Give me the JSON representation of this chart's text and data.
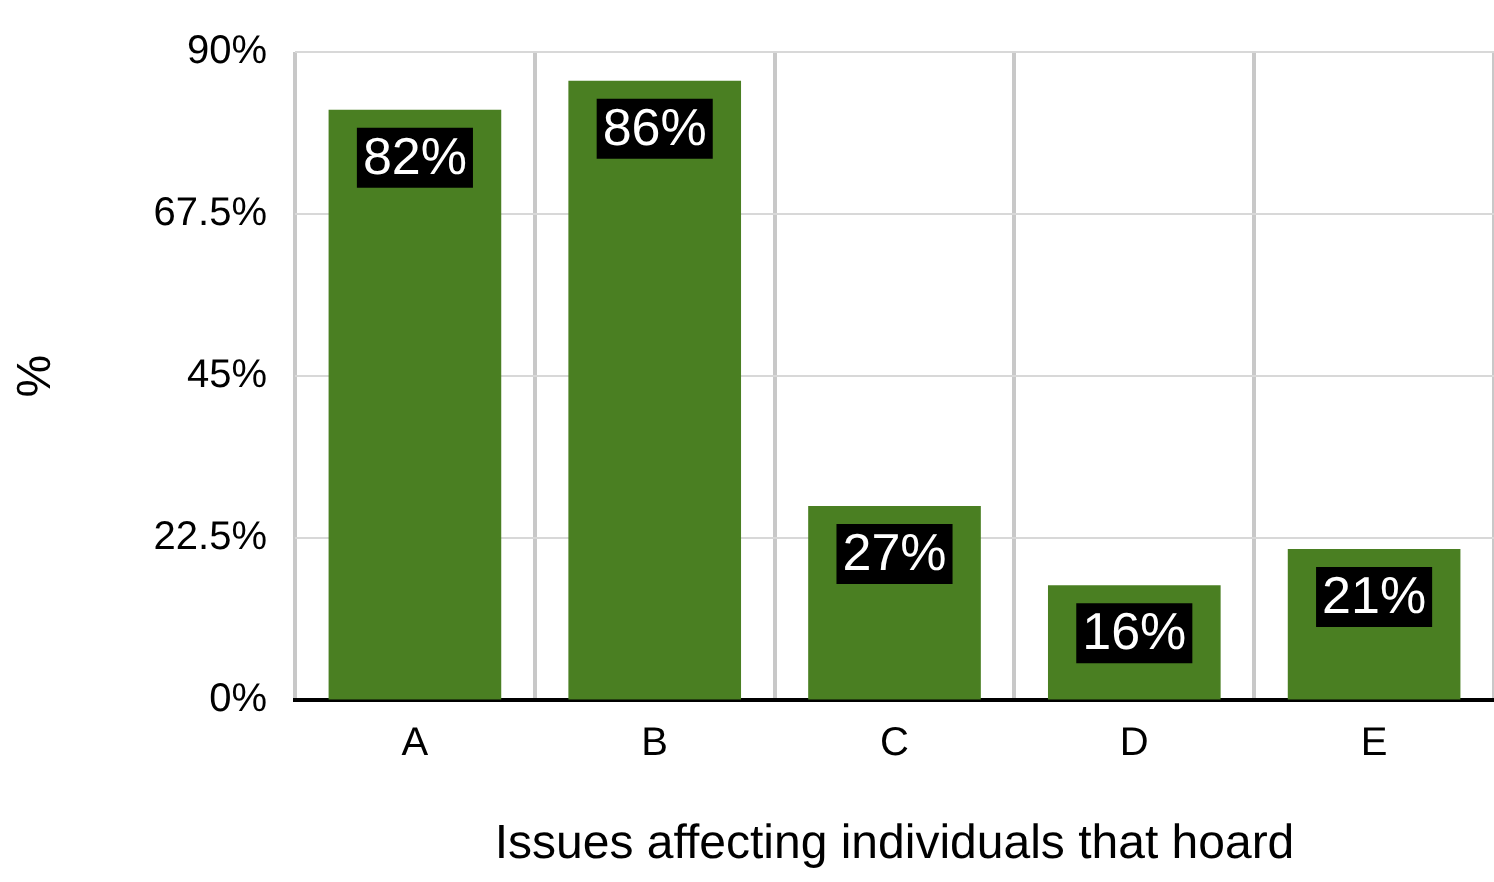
{
  "chart_data": {
    "type": "bar",
    "xlabel": "Issues affecting individuals that hoard",
    "ylabel": "%",
    "categories": [
      "A",
      "B",
      "C",
      "D",
      "E"
    ],
    "values": [
      82,
      86,
      27,
      16,
      21
    ],
    "value_labels": [
      "82%",
      "86%",
      "27%",
      "16%",
      "21%"
    ],
    "color": "#4a7f22",
    "ylim": [
      0,
      90
    ],
    "yticks": [
      {
        "value": 0,
        "label": "0%"
      },
      {
        "value": 22.5,
        "label": "22.5%"
      },
      {
        "value": 45,
        "label": "45%"
      },
      {
        "value": 67.5,
        "label": "67.5%"
      },
      {
        "value": 90,
        "label": "90%"
      }
    ],
    "grid": true,
    "legend": false
  }
}
